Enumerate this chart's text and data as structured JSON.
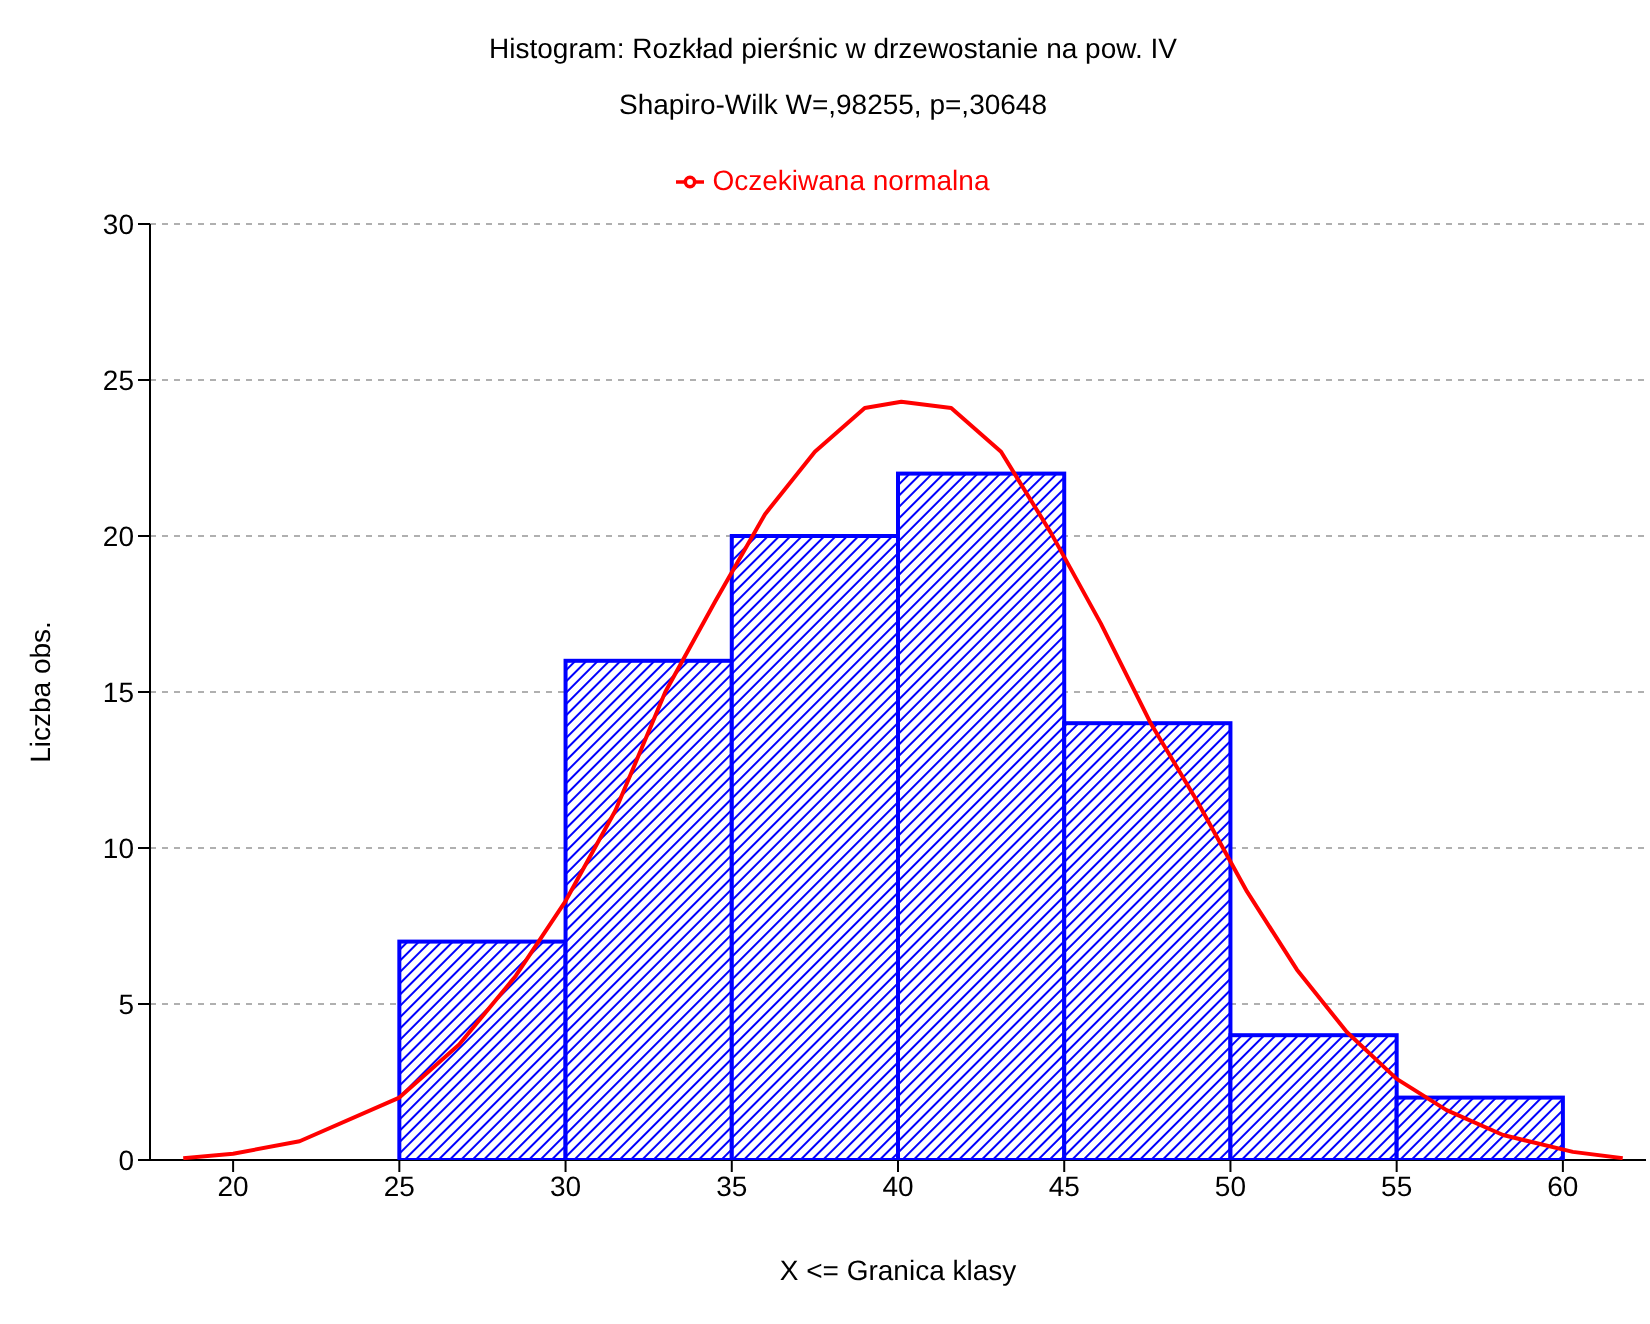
{
  "chart_data": {
    "type": "histogram",
    "title": "Histogram: Rozkład pierśnic w drzewostanie na pow. IV",
    "subtitle": "Shapiro-Wilk W=,98255, p=,30648",
    "xlabel": "X <= Granica klasy",
    "ylabel": "Liczba obs.",
    "bins": [
      20,
      25,
      30,
      35,
      40,
      45,
      50,
      55,
      60
    ],
    "series": [
      {
        "color": "#0000ff",
        "values": [
          0,
          7,
          16,
          20,
          22,
          14,
          4,
          2
        ]
      },
      {
        "type": "line",
        "name": "Oczekiwana normalna",
        "color": "#ff0000",
        "x": [
          18.5,
          20,
          22,
          25,
          26.8,
          28.5,
          30,
          31.5,
          33,
          34.5,
          36,
          37.5,
          39,
          40.1,
          41.6,
          43.1,
          44.6,
          46.1,
          47.6,
          49,
          50.5,
          52,
          53.5,
          55,
          56.5,
          58.2,
          60.3,
          61.8
        ],
        "values": [
          0.06,
          0.2,
          0.6,
          2.0,
          3.7,
          5.9,
          8.3,
          11.2,
          15,
          17.9,
          20.7,
          22.7,
          24.1,
          24.3,
          24.1,
          22.7,
          20.1,
          17.2,
          14,
          11.5,
          8.6,
          6.1,
          4.1,
          2.6,
          1.6,
          0.8,
          0.26,
          0.06
        ]
      }
    ],
    "xlim": [
      17.5,
      62.5
    ],
    "xticks": [
      20,
      25,
      30,
      35,
      40,
      45,
      50,
      55,
      60
    ],
    "ylim": [
      0,
      30
    ],
    "yticks": [
      0,
      5,
      10,
      15,
      20,
      25,
      30
    ],
    "grid": "y",
    "legend": "top",
    "marker": "none",
    "line_style": "solid"
  }
}
